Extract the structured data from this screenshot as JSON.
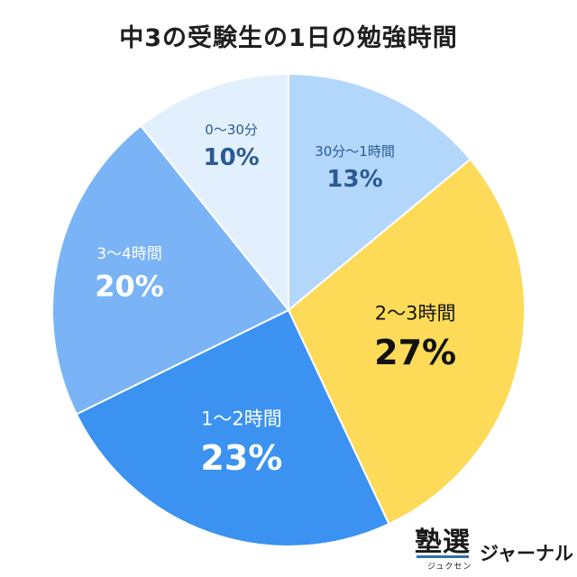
{
  "chart_data": {
    "type": "pie",
    "title": "中3の受験生の1日の勉強時間",
    "unit": "%",
    "slices": [
      {
        "label": "30分〜1時間",
        "value": 13,
        "value_label": "13%",
        "color": "#b3d7fb",
        "text_color": "#2a5a92"
      },
      {
        "label": "2〜3時間",
        "value": 27,
        "value_label": "27%",
        "color": "#fddb59",
        "text_color": "#111111"
      },
      {
        "label": "1〜2時間",
        "value": 23,
        "value_label": "23%",
        "color": "#3b92f0",
        "text_color": "#ffffff"
      },
      {
        "label": "3〜4時間",
        "value": 20,
        "value_label": "20%",
        "color": "#7ab4f6",
        "text_color": "#ffffff"
      },
      {
        "label": "0〜30分",
        "value": 10,
        "value_label": "10%",
        "color": "#e2f0fe",
        "text_color": "#2a5a92"
      }
    ]
  },
  "logo": {
    "main": "塾選",
    "reading": "ジュクセン",
    "journal": "ジャーナル"
  }
}
